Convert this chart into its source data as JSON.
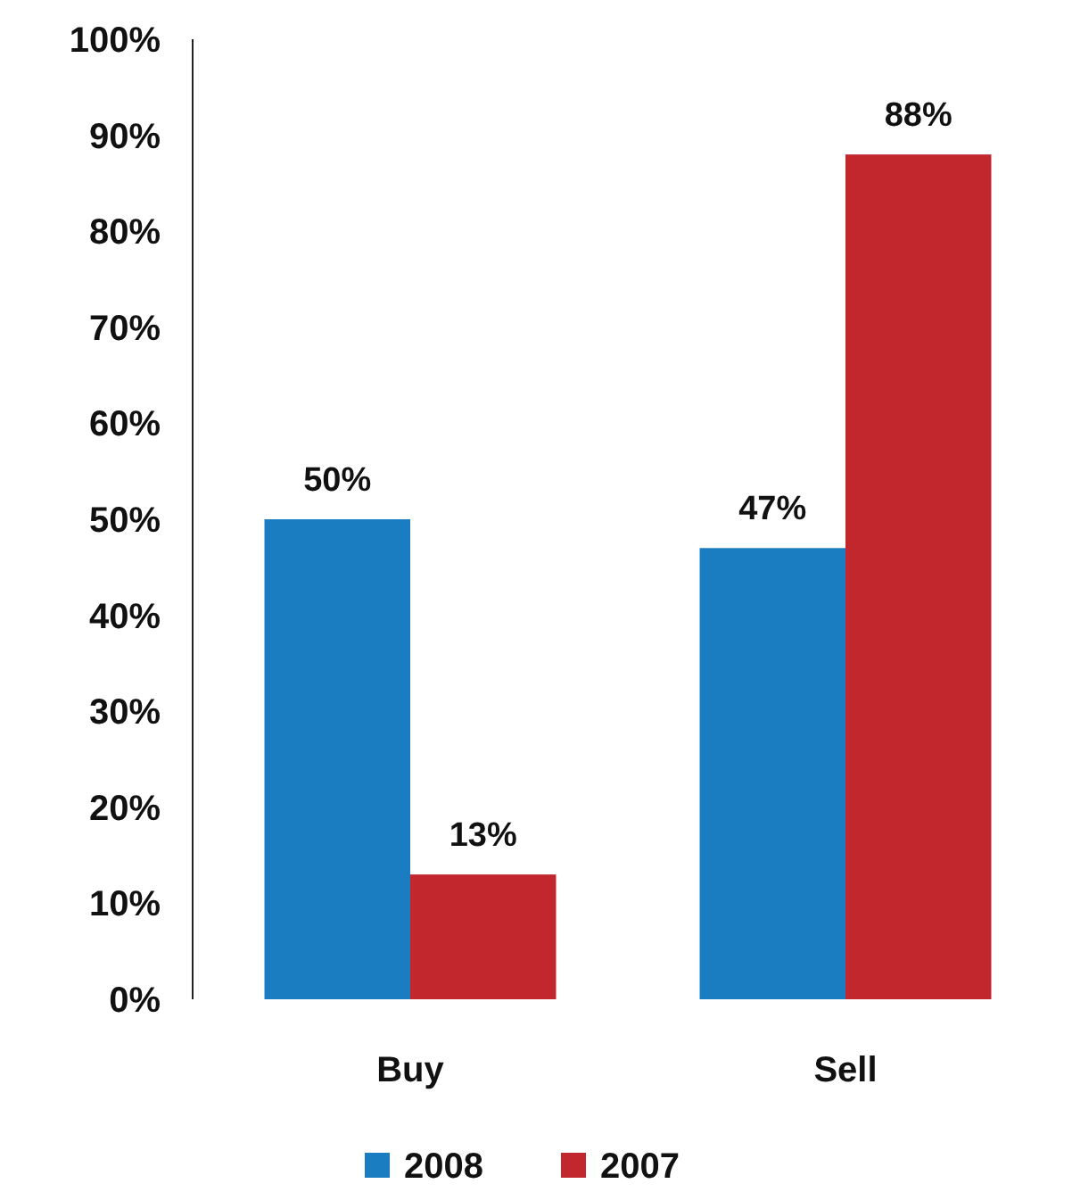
{
  "chart_data": {
    "type": "bar",
    "categories": [
      "Buy",
      "Sell"
    ],
    "series": [
      {
        "name": "2008",
        "color": "#1a7dc1",
        "values": [
          50,
          47
        ],
        "value_labels": [
          "50%",
          "47%"
        ]
      },
      {
        "name": "2007",
        "color": "#c1272d",
        "values": [
          13,
          88
        ],
        "value_labels": [
          "13%",
          "88%"
        ]
      }
    ],
    "ylim": [
      0,
      100
    ],
    "yticks": [
      {
        "value": 0,
        "label": "0%"
      },
      {
        "value": 10,
        "label": "10%"
      },
      {
        "value": 20,
        "label": "20%"
      },
      {
        "value": 30,
        "label": "30%"
      },
      {
        "value": 40,
        "label": "40%"
      },
      {
        "value": 50,
        "label": "50%"
      },
      {
        "value": 60,
        "label": "60%"
      },
      {
        "value": 70,
        "label": "70%"
      },
      {
        "value": 80,
        "label": "80%"
      },
      {
        "value": 90,
        "label": "90%"
      },
      {
        "value": 100,
        "label": "100%"
      }
    ],
    "grid": false,
    "legend": "bottom"
  }
}
